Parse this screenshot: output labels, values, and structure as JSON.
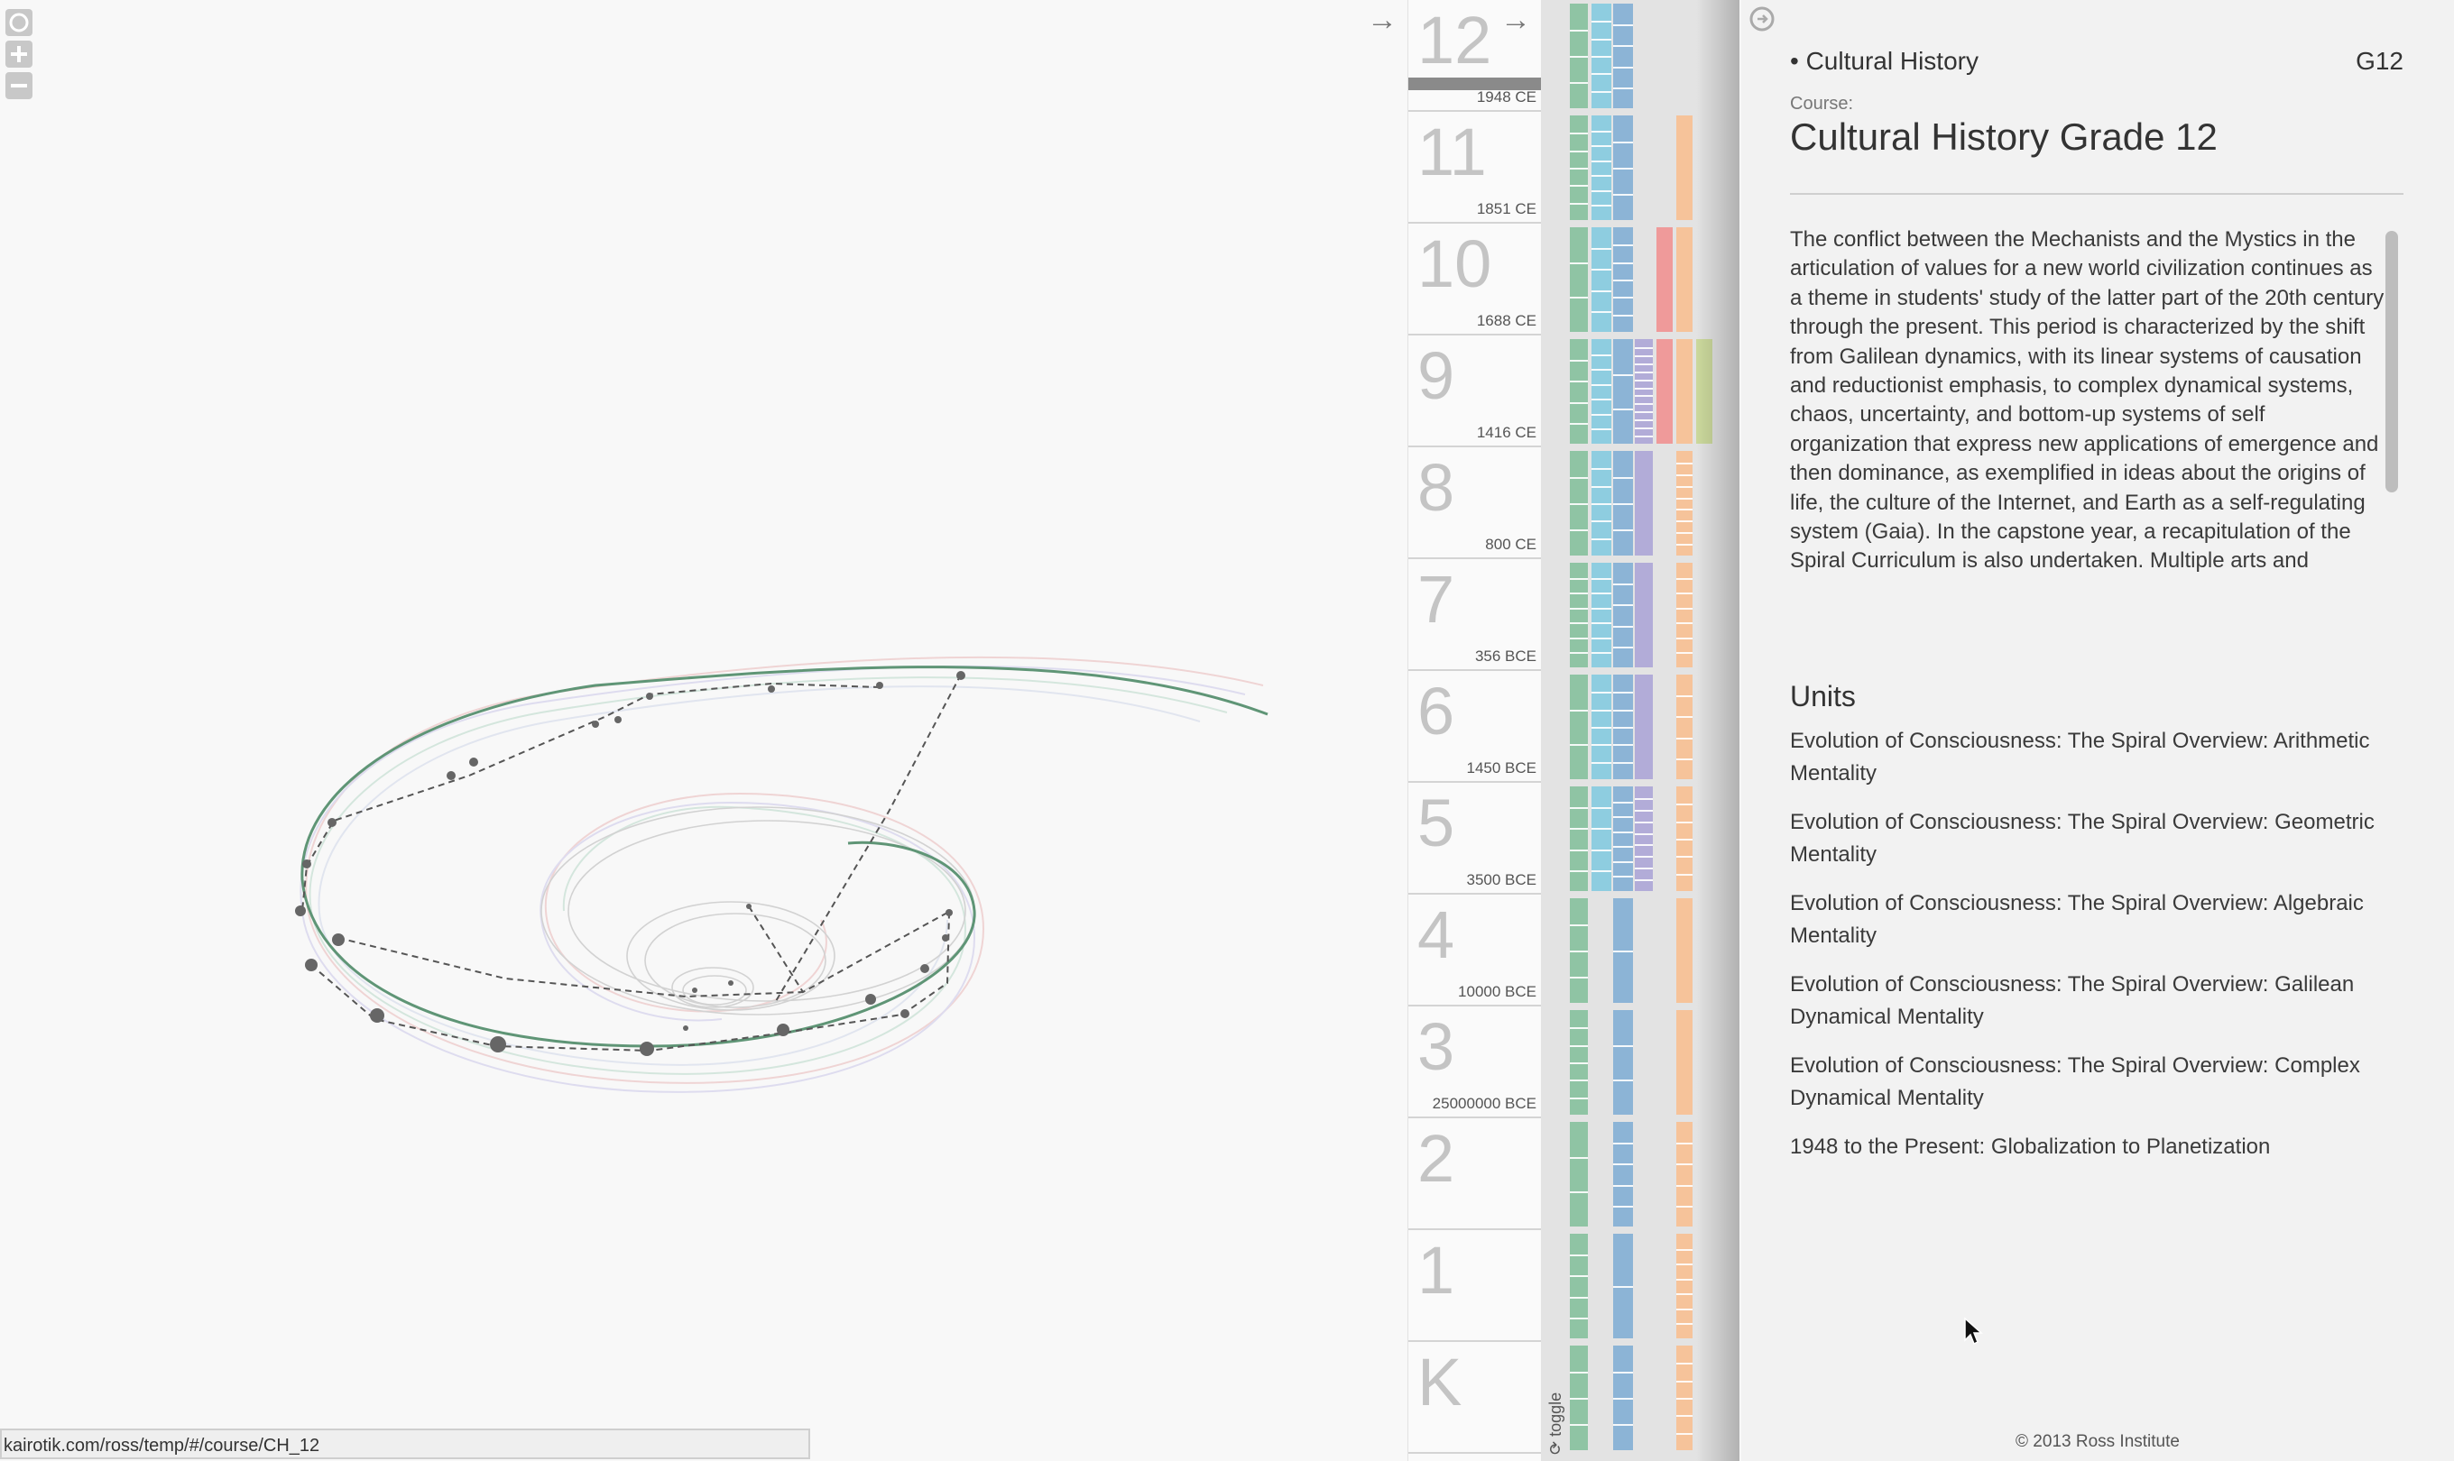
{
  "status": {
    "url": "kairotik.com/ross/temp/#/course/CH_12"
  },
  "viz": {
    "icons": {
      "reset": "circle-reset-icon",
      "zoom_in": "plus-icon",
      "zoom_out": "minus-icon"
    },
    "collapse_icon": "→"
  },
  "grade_column": {
    "expand_icon": "→",
    "grades": [
      {
        "label": "12",
        "year": "1948 CE",
        "selected": true
      },
      {
        "label": "11",
        "year": "1851 CE"
      },
      {
        "label": "10",
        "year": "1688 CE"
      },
      {
        "label": "9",
        "year": "1416 CE"
      },
      {
        "label": "8",
        "year": "800 CE"
      },
      {
        "label": "7",
        "year": "356 BCE"
      },
      {
        "label": "6",
        "year": "1450 BCE"
      },
      {
        "label": "5",
        "year": "3500 BCE"
      },
      {
        "label": "4",
        "year": "10000 BCE"
      },
      {
        "label": "3",
        "year": "25000000 BCE"
      },
      {
        "label": "2",
        "year": ""
      },
      {
        "label": "1",
        "year": ""
      },
      {
        "label": "K",
        "year": ""
      }
    ],
    "toggle_label": "⟳ toggle"
  },
  "stripe_colors": {
    "green": "#8fc4a4",
    "blue": "#8ecde0",
    "steel": "#8cb4d6",
    "purple": "#b2acd8",
    "red": "#ef9a9a",
    "orange": "#f6c39a",
    "olive": "#cbd89c"
  },
  "panel": {
    "title": "• Cultural History",
    "code": "G12",
    "course_label": "Course:",
    "course_name": "Cultural History Grade 12",
    "description": "The conflict between the Mechanists and the Mystics in the articulation of values for a new world civilization continues as a theme in students' study of the latter part of the 20th century through the present. This period is characterized by the shift from Galilean dynamics, with its linear systems of causation and reductionist emphasis, to complex dynamical systems, chaos, uncertainty, and bottom-up systems of self organization that express new applications of emergence and then dominance, as exemplified in ideas about the origins of life, the culture of the Internet, and Earth as a self-regulating system (Gaia). In the capstone year, a recapitulation of the Spiral Curriculum is also undertaken. Multiple arts and",
    "units_heading": "Units",
    "units": [
      "Evolution of Consciousness: The Spiral Overview: Arithmetic Mentality",
      "Evolution of Consciousness: The Spiral Overview: Geometric Mentality",
      "Evolution of Consciousness: The Spiral Overview: Algebraic Mentality",
      "Evolution of Consciousness: The Spiral Overview: Galilean Dynamical Mentality",
      "Evolution of Consciousness: The Spiral Overview: Complex Dynamical Mentality",
      "1948 to the Present: Globalization to Planetization"
    ],
    "footer": "© 2013 Ross Institute"
  }
}
